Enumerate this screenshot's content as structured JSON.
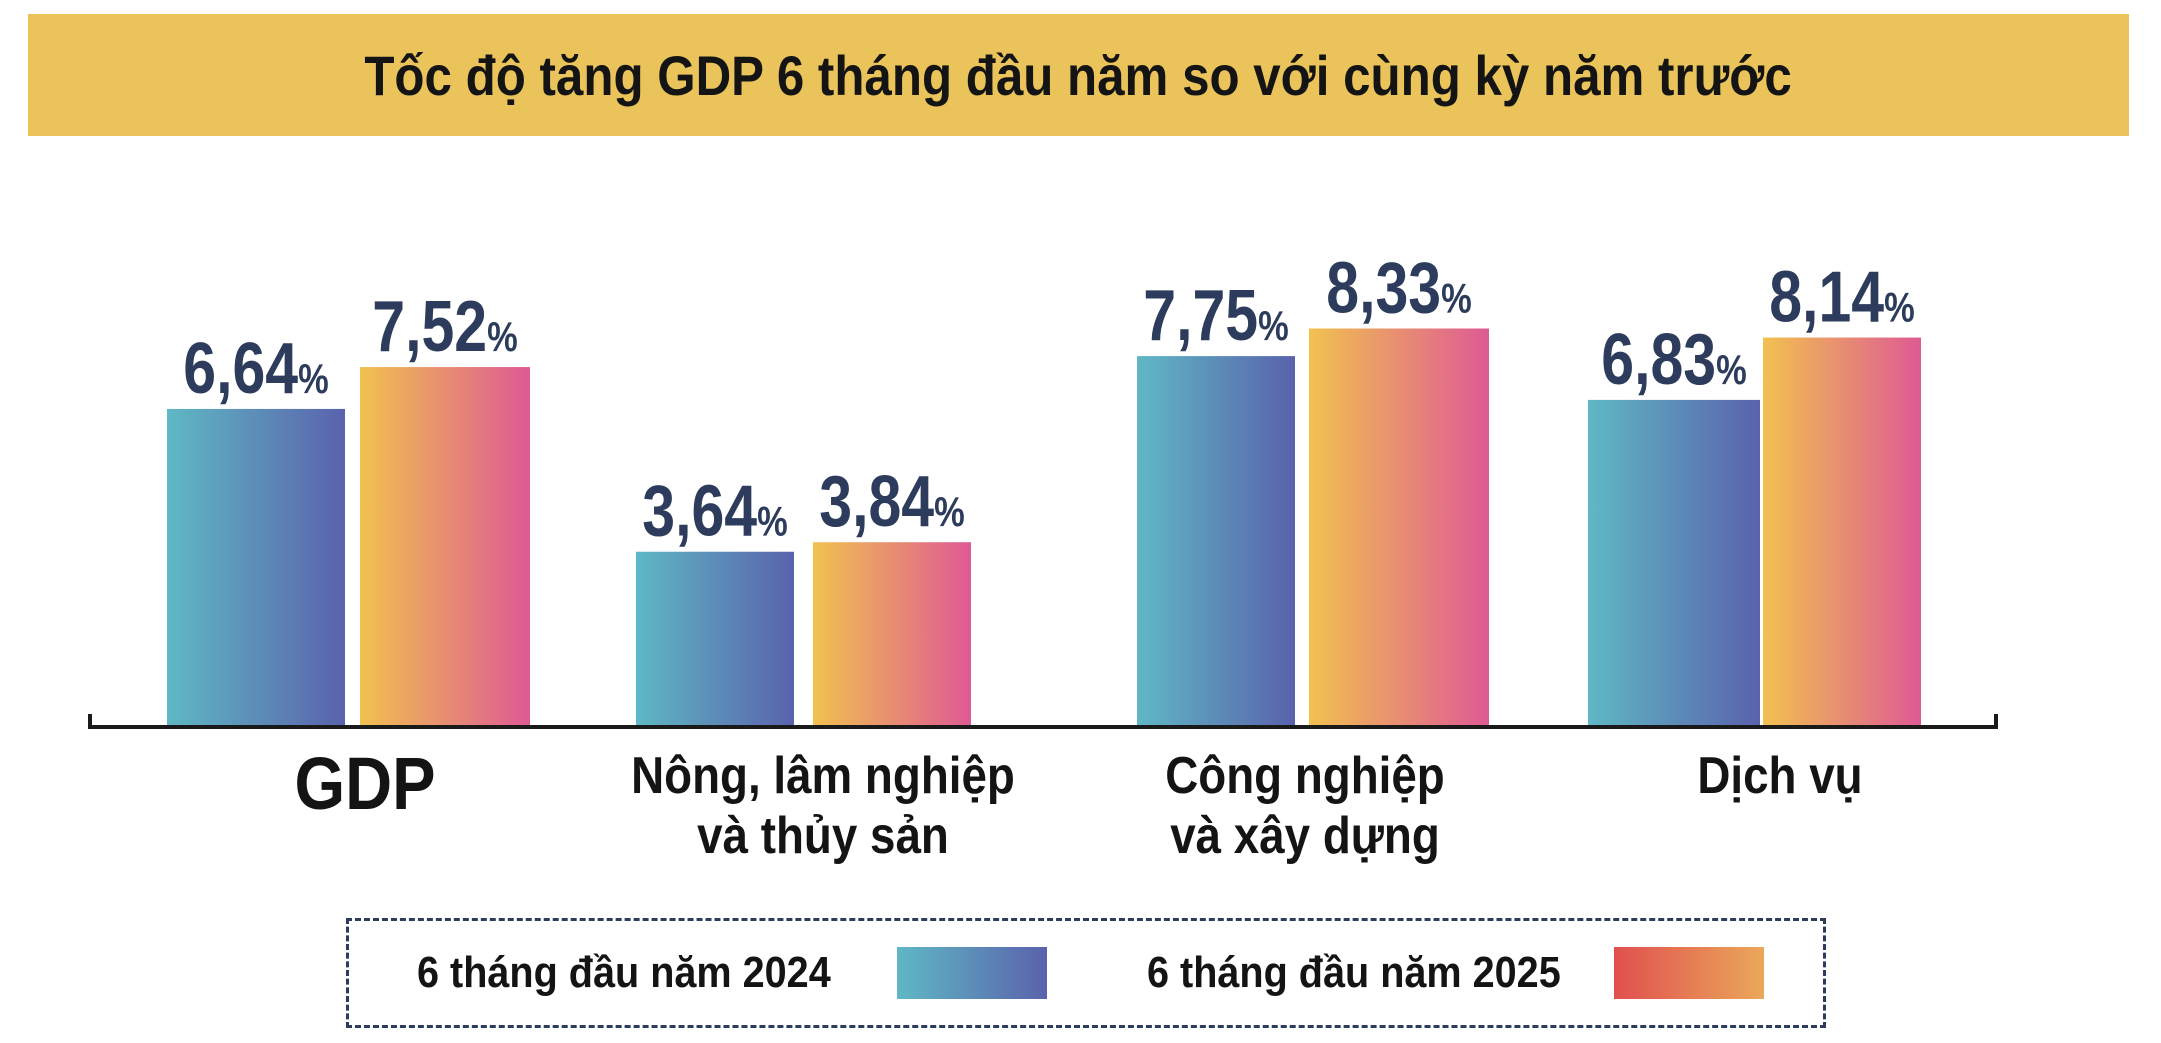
{
  "chart_data": {
    "type": "bar",
    "title": "Tốc độ tăng GDP 6 tháng đầu năm so với cùng kỳ năm trước",
    "categories": [
      "GDP",
      "Nông, lâm nghiệp và thủy sản",
      "Công nghiệp và xây dựng",
      "Dịch vụ"
    ],
    "category_lines": [
      [
        "GDP"
      ],
      [
        "Nông, lâm nghiệp",
        "và thủy sản"
      ],
      [
        "Công nghiệp",
        "và xây dựng"
      ],
      [
        "Dịch vụ"
      ]
    ],
    "series": [
      {
        "name": "6 tháng đầu năm 2024",
        "values": [
          6.64,
          3.64,
          7.75,
          6.83
        ],
        "labels": [
          "6,64",
          "3,64",
          "7,75",
          "6,83"
        ],
        "colors": [
          "#5fb8c4",
          "#5a62ac"
        ]
      },
      {
        "name": "6 tháng đầu năm 2025",
        "values": [
          7.52,
          3.84,
          8.33,
          8.14
        ],
        "labels": [
          "7,52",
          "3,84",
          "8,33",
          "8,14"
        ],
        "colors": [
          "#f1c150",
          "#de5a94"
        ]
      }
    ],
    "unit": "%",
    "ylim": [
      0,
      9
    ],
    "xlabel": "",
    "ylabel": "",
    "legend_position": "bottom",
    "grid": false
  },
  "legend": {
    "label_2024": "6 tháng đầu năm 2024",
    "label_2025": "6 tháng đầu năm 2025"
  },
  "colors": {
    "title_background": "#eac45a",
    "value_text": "#2d3c5c"
  }
}
